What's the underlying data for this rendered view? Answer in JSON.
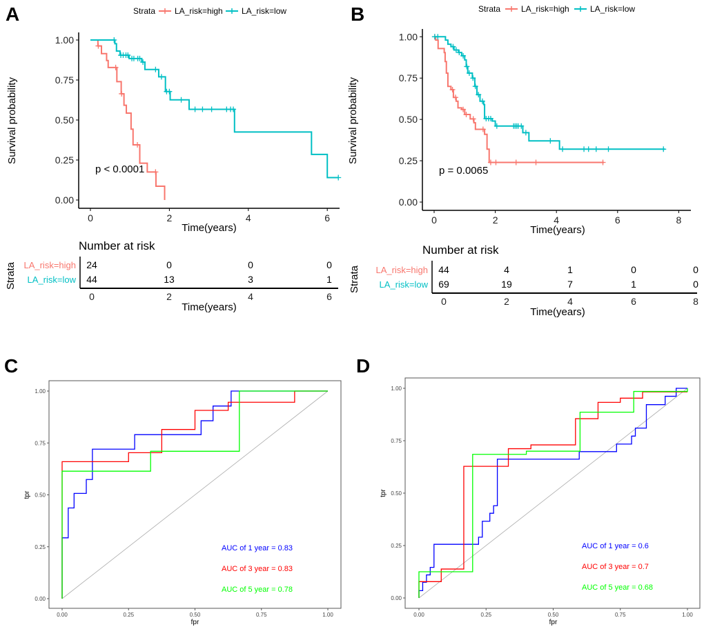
{
  "panel_letters": [
    "A",
    "B",
    "C",
    "D"
  ],
  "colors": {
    "high": "#F8766D",
    "low": "#00BFC4",
    "roc_1": "#0000FF",
    "roc_3": "#FF0000",
    "roc_5": "#00FF00",
    "diagonal": "#AAAAAA"
  },
  "chart_data": [
    {
      "type": "line",
      "subtype": "kaplan-meier",
      "panel": "A",
      "legend_title": "Strata",
      "legend_placement": "top",
      "xlabel": "Time(years)",
      "ylabel": "Survival probability",
      "xticks": [
        "0",
        "2",
        "4",
        "6"
      ],
      "yticks": [
        "0.00",
        "0.25",
        "0.50",
        "0.75",
        "1.00"
      ],
      "ylim": [
        0,
        1
      ],
      "xlim": [
        0,
        6.3
      ],
      "annotation": "p < 0.0001",
      "series": [
        {
          "name": "LA_risk=high",
          "end": 1.88,
          "steps": [
            [
              0,
              1
            ],
            [
              0.19,
              0.963
            ],
            [
              0.28,
              0.915
            ],
            [
              0.41,
              0.872
            ],
            [
              0.45,
              0.828
            ],
            [
              0.67,
              0.74
            ],
            [
              0.78,
              0.664
            ],
            [
              0.85,
              0.592
            ],
            [
              0.91,
              0.543
            ],
            [
              1.03,
              0.443
            ],
            [
              1.08,
              0.345
            ],
            [
              1.25,
              0.23
            ],
            [
              1.44,
              0.175
            ],
            [
              1.66,
              0.086
            ],
            [
              1.88,
              0
            ]
          ],
          "censor": [
            0.2,
            0.64,
            0.79,
            1.19,
            1.65
          ]
        },
        {
          "name": "LA_risk=low",
          "end": 6.28,
          "steps": [
            [
              0,
              1
            ],
            [
              0.62,
              0.977
            ],
            [
              0.66,
              0.931
            ],
            [
              0.75,
              0.905
            ],
            [
              0.98,
              0.884
            ],
            [
              1.3,
              0.862
            ],
            [
              1.38,
              0.816
            ],
            [
              1.73,
              0.77
            ],
            [
              1.9,
              0.678
            ],
            [
              2.02,
              0.626
            ],
            [
              2.5,
              0.567
            ],
            [
              3.65,
              0.425
            ],
            [
              5.6,
              0.285
            ],
            [
              6.0,
              0.14
            ]
          ],
          "censor": [
            0.6,
            0.77,
            0.83,
            0.9,
            0.95,
            1.05,
            1.1,
            1.2,
            1.25,
            1.33,
            1.65,
            1.8,
            1.93,
            2.0,
            2.3,
            2.65,
            2.84,
            3.07,
            3.45,
            3.55,
            3.62,
            6.28
          ]
        }
      ],
      "risk_table": {
        "title": "Number at risk",
        "ylabel": "Strata",
        "xlabel": "Time(years)",
        "times": [
          "0",
          "2",
          "4",
          "6"
        ],
        "rows": [
          {
            "label": "LA_risk=high",
            "values": [
              "24",
              "0",
              "0",
              "0"
            ]
          },
          {
            "label": "LA_risk=low",
            "values": [
              "44",
              "13",
              "3",
              "1"
            ]
          }
        ]
      }
    },
    {
      "type": "line",
      "subtype": "kaplan-meier",
      "panel": "B",
      "legend_title": "Strata",
      "legend_placement": "top",
      "xlabel": "Time(years)",
      "ylabel": "Survival probability",
      "xticks": [
        "0",
        "2",
        "4",
        "6",
        "8"
      ],
      "yticks": [
        "0.00",
        "0.25",
        "0.50",
        "0.75",
        "1.00"
      ],
      "ylim": [
        0,
        1
      ],
      "xlim": [
        0,
        8.3
      ],
      "annotation": "p = 0.0065",
      "series": [
        {
          "name": "LA_risk=high",
          "end": 5.55,
          "steps": [
            [
              0,
              1
            ],
            [
              0.05,
              0.98
            ],
            [
              0.13,
              0.929
            ],
            [
              0.33,
              0.904
            ],
            [
              0.36,
              0.85
            ],
            [
              0.4,
              0.78
            ],
            [
              0.45,
              0.7
            ],
            [
              0.55,
              0.68
            ],
            [
              0.63,
              0.633
            ],
            [
              0.72,
              0.61
            ],
            [
              0.78,
              0.57
            ],
            [
              0.9,
              0.56
            ],
            [
              1.0,
              0.53
            ],
            [
              1.18,
              0.503
            ],
            [
              1.3,
              0.48
            ],
            [
              1.35,
              0.44
            ],
            [
              1.65,
              0.41
            ],
            [
              1.73,
              0.32
            ],
            [
              1.8,
              0.24
            ]
          ],
          "censor": [
            0.02,
            0.6,
            0.7,
            0.95,
            1.05,
            1.28,
            1.6,
            1.85,
            2.02,
            2.68,
            3.33,
            5.52
          ]
        },
        {
          "name": "LA_risk=low",
          "end": 7.55,
          "steps": [
            [
              0,
              1
            ],
            [
              0.37,
              0.98
            ],
            [
              0.45,
              0.955
            ],
            [
              0.55,
              0.94
            ],
            [
              0.65,
              0.92
            ],
            [
              0.8,
              0.905
            ],
            [
              0.9,
              0.885
            ],
            [
              1.0,
              0.86
            ],
            [
              1.05,
              0.82
            ],
            [
              1.1,
              0.78
            ],
            [
              1.25,
              0.75
            ],
            [
              1.33,
              0.7
            ],
            [
              1.4,
              0.65
            ],
            [
              1.5,
              0.61
            ],
            [
              1.62,
              0.59
            ],
            [
              1.65,
              0.505
            ],
            [
              1.9,
              0.49
            ],
            [
              2.0,
              0.46
            ],
            [
              2.9,
              0.42
            ],
            [
              3.1,
              0.37
            ],
            [
              4.1,
              0.32
            ]
          ],
          "censor": [
            0.02,
            0.12,
            0.62,
            0.72,
            0.82,
            0.95,
            1.07,
            1.15,
            1.27,
            1.35,
            1.45,
            1.58,
            1.7,
            1.78,
            1.85,
            2.05,
            2.6,
            2.65,
            2.7,
            2.75,
            2.85,
            3.0,
            3.8,
            4.2,
            4.9,
            5.05,
            5.3,
            5.7,
            7.5
          ]
        }
      ],
      "risk_table": {
        "title": "Number at risk",
        "ylabel": "Strata",
        "xlabel": "Time(years)",
        "times": [
          "0",
          "2",
          "4",
          "6",
          "8"
        ],
        "rows": [
          {
            "label": "LA_risk=high",
            "values": [
              "44",
              "4",
              "1",
              "0",
              "0"
            ]
          },
          {
            "label": "LA_risk=low",
            "values": [
              "69",
              "19",
              "7",
              "1",
              "0"
            ]
          }
        ]
      }
    },
    {
      "type": "line",
      "subtype": "roc",
      "panel": "C",
      "xlabel": "fpr",
      "ylabel": "tpr",
      "xticks": [
        "0.00",
        "0.25",
        "0.50",
        "0.75",
        "1.00"
      ],
      "yticks": [
        "0.00",
        "0.25",
        "0.50",
        "0.75",
        "1.00"
      ],
      "xlim": [
        0,
        1
      ],
      "ylim": [
        0,
        1
      ],
      "series": [
        {
          "label": "AUC of 1 year =  0.83",
          "color_key": "roc_1",
          "points": [
            [
              0,
              0
            ],
            [
              0,
              0.293
            ],
            [
              0.023,
              0.293
            ],
            [
              0.023,
              0.437
            ],
            [
              0.045,
              0.437
            ],
            [
              0.045,
              0.507
            ],
            [
              0.091,
              0.507
            ],
            [
              0.091,
              0.574
            ],
            [
              0.114,
              0.574
            ],
            [
              0.114,
              0.72
            ],
            [
              0.273,
              0.72
            ],
            [
              0.273,
              0.79
            ],
            [
              0.523,
              0.79
            ],
            [
              0.523,
              0.857
            ],
            [
              0.568,
              0.857
            ],
            [
              0.568,
              0.928
            ],
            [
              0.636,
              0.928
            ],
            [
              0.636,
              1
            ],
            [
              1,
              1
            ]
          ]
        },
        {
          "label": "AUC of 3 year =  0.83",
          "color_key": "roc_3",
          "points": [
            [
              0,
              0
            ],
            [
              0,
              0.66
            ],
            [
              0.25,
              0.66
            ],
            [
              0.25,
              0.703
            ],
            [
              0.375,
              0.703
            ],
            [
              0.375,
              0.815
            ],
            [
              0.5,
              0.815
            ],
            [
              0.5,
              0.907
            ],
            [
              0.625,
              0.907
            ],
            [
              0.625,
              0.946
            ],
            [
              0.875,
              0.946
            ],
            [
              0.875,
              1
            ],
            [
              1,
              1
            ]
          ]
        },
        {
          "label": "AUC of 5 year =  0.78",
          "color_key": "roc_5",
          "points": [
            [
              0,
              0
            ],
            [
              0,
              0.614
            ],
            [
              0.333,
              0.614
            ],
            [
              0.333,
              0.71
            ],
            [
              0.667,
              0.71
            ],
            [
              0.667,
              1
            ],
            [
              1,
              1
            ]
          ]
        }
      ]
    },
    {
      "type": "line",
      "subtype": "roc",
      "panel": "D",
      "xlabel": "fpr",
      "ylabel": "tpr",
      "xticks": [
        "0.00",
        "0.25",
        "0.50",
        "0.75",
        "1.00"
      ],
      "yticks": [
        "0.00",
        "0.25",
        "0.50",
        "0.75",
        "1.00"
      ],
      "xlim": [
        0,
        1
      ],
      "ylim": [
        0,
        1
      ],
      "series": [
        {
          "label": "AUC of 1 year =  0.6",
          "color_key": "roc_1",
          "points": [
            [
              0,
              0
            ],
            [
              0,
              0.035
            ],
            [
              0.014,
              0.035
            ],
            [
              0.014,
              0.075
            ],
            [
              0.028,
              0.075
            ],
            [
              0.028,
              0.11
            ],
            [
              0.042,
              0.11
            ],
            [
              0.042,
              0.146
            ],
            [
              0.056,
              0.146
            ],
            [
              0.056,
              0.256
            ],
            [
              0.222,
              0.256
            ],
            [
              0.222,
              0.29
            ],
            [
              0.236,
              0.29
            ],
            [
              0.236,
              0.366
            ],
            [
              0.264,
              0.366
            ],
            [
              0.264,
              0.404
            ],
            [
              0.278,
              0.404
            ],
            [
              0.278,
              0.44
            ],
            [
              0.292,
              0.44
            ],
            [
              0.292,
              0.662
            ],
            [
              0.597,
              0.662
            ],
            [
              0.597,
              0.698
            ],
            [
              0.736,
              0.698
            ],
            [
              0.736,
              0.734
            ],
            [
              0.792,
              0.734
            ],
            [
              0.792,
              0.772
            ],
            [
              0.806,
              0.772
            ],
            [
              0.806,
              0.81
            ],
            [
              0.847,
              0.81
            ],
            [
              0.847,
              0.922
            ],
            [
              0.917,
              0.922
            ],
            [
              0.917,
              0.962
            ],
            [
              0.958,
              0.962
            ],
            [
              0.958,
              1
            ],
            [
              1,
              1
            ]
          ]
        },
        {
          "label": "AUC of 3 year =  0.7",
          "color_key": "roc_3",
          "points": [
            [
              0,
              0
            ],
            [
              0,
              0.078
            ],
            [
              0.083,
              0.078
            ],
            [
              0.083,
              0.138
            ],
            [
              0.167,
              0.138
            ],
            [
              0.167,
              0.628
            ],
            [
              0.333,
              0.628
            ],
            [
              0.333,
              0.712
            ],
            [
              0.417,
              0.712
            ],
            [
              0.417,
              0.73
            ],
            [
              0.583,
              0.73
            ],
            [
              0.583,
              0.855
            ],
            [
              0.667,
              0.855
            ],
            [
              0.667,
              0.933
            ],
            [
              0.75,
              0.933
            ],
            [
              0.75,
              0.953
            ],
            [
              0.833,
              0.953
            ],
            [
              0.833,
              0.983
            ],
            [
              1,
              0.983
            ]
          ]
        },
        {
          "label": "AUC of 5 year =  0.68",
          "color_key": "roc_5",
          "points": [
            [
              0,
              0
            ],
            [
              0,
              0.125
            ],
            [
              0.2,
              0.125
            ],
            [
              0.2,
              0.685
            ],
            [
              0.4,
              0.685
            ],
            [
              0.4,
              0.7
            ],
            [
              0.6,
              0.7
            ],
            [
              0.6,
              0.886
            ],
            [
              0.8,
              0.886
            ],
            [
              0.8,
              0.985
            ],
            [
              1,
              0.985
            ],
            [
              1,
              1
            ]
          ]
        }
      ]
    }
  ]
}
